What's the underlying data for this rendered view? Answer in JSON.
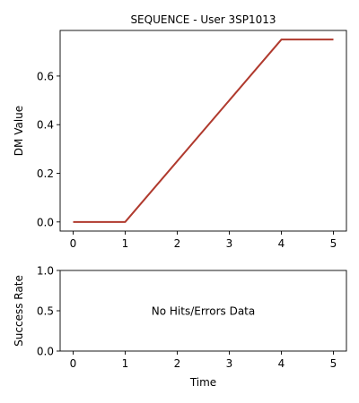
{
  "chart_data": [
    {
      "type": "line",
      "title": "SEQUENCE - User 3SP1013",
      "xlabel": "",
      "ylabel": "DM Value",
      "xlim": [
        -0.25,
        5.25
      ],
      "ylim": [
        -0.0375,
        0.7875
      ],
      "x_ticks": [
        0,
        1,
        2,
        3,
        4,
        5
      ],
      "x_tick_labels": [
        "0",
        "1",
        "2",
        "3",
        "4",
        "5"
      ],
      "y_ticks": [
        0.0,
        0.2,
        0.4,
        0.6
      ],
      "y_tick_labels": [
        "0.0",
        "0.2",
        "0.4",
        "0.6"
      ],
      "grid": false,
      "series": [
        {
          "color": "#b03a2e",
          "x": [
            0,
            1,
            4,
            5
          ],
          "y": [
            0.0,
            0.0,
            0.75,
            0.75
          ]
        }
      ]
    },
    {
      "type": "line",
      "title": "",
      "xlabel": "Time",
      "ylabel": "Success Rate",
      "xlim": [
        -0.25,
        5.25
      ],
      "ylim": [
        0.0,
        1.0
      ],
      "x_ticks": [
        0,
        1,
        2,
        3,
        4,
        5
      ],
      "x_tick_labels": [
        "0",
        "1",
        "2",
        "3",
        "4",
        "5"
      ],
      "y_ticks": [
        0.0,
        0.5,
        1.0
      ],
      "y_tick_labels": [
        "0.0",
        "0.5",
        "1.0"
      ],
      "grid": false,
      "annotation": "No Hits/Errors Data",
      "series": []
    }
  ]
}
